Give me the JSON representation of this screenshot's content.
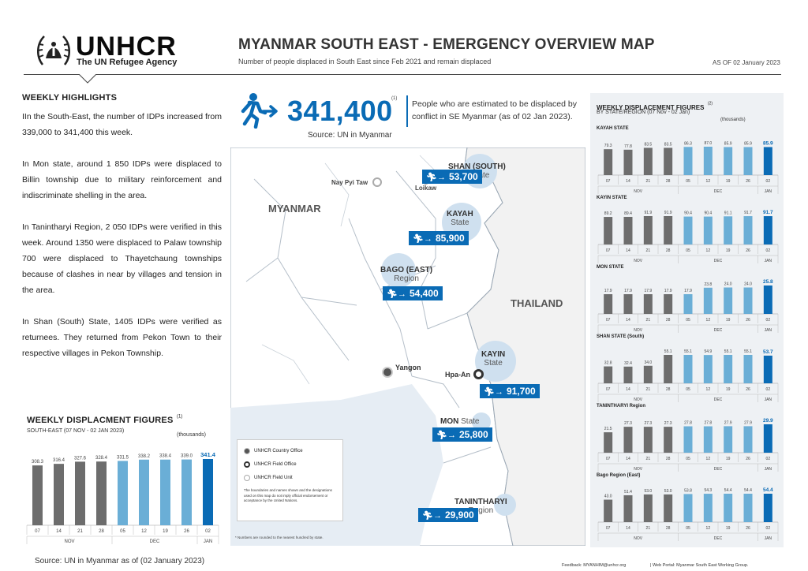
{
  "header": {
    "org_name": "UNHCR",
    "org_sub": "The UN Refugee Agency",
    "title": "MYANMAR SOUTH EAST - EMERGENCY OVERVIEW MAP",
    "subtitle": "Number of people displaced in South East since Feb 2021 and remain displaced",
    "as_of": "AS OF 02 January 2023"
  },
  "highlights": {
    "title": "WEEKLY HIGHLIGHTS",
    "paragraphs": [
      "IIn the South-East, the number of IDPs increased from 339,000 to 341,400 this week.",
      "In Mon state, around 1 850 IDPs were displaced to Billin township due to military reinforcement and indiscriminate shelling in the area.",
      "In Tanintharyi Region, 2 050 IDPs were verified in this week. Around 1350 were displaced to Palaw township 700 were displaced to Thayetchaung townships because of clashes in near by villages and tension in the area.",
      "In Shan (South) State, 1405 IDPs were verified as returnees. They returned from Pekon Town to their respective villages in Pekon Township."
    ]
  },
  "headline": {
    "total": "341,400",
    "footnote": "(1)",
    "source": "Source: UN in Myanmar",
    "description": "People who are estimated to be displaced by conflict in SE Myanmar (as of 02 Jan 2023)."
  },
  "map": {
    "country": "MYANMAR",
    "neighbor": "THAILAND",
    "cities": {
      "nay_pyi_taw": "Nay Pyi Taw",
      "loikaw": "Loikaw",
      "yangon": "Yangon",
      "hpa_an": "Hpa-An"
    },
    "regions": [
      {
        "key": "shan",
        "name": "SHAN (SOUTH)",
        "type": "State",
        "value": "53,700"
      },
      {
        "key": "kayah",
        "name": "KAYAH",
        "type": "State",
        "value": "85,900"
      },
      {
        "key": "bago",
        "name": "BAGO (EAST)",
        "type": "Region",
        "value": "54,400"
      },
      {
        "key": "kayin",
        "name": "KAYIN",
        "type": "State",
        "value": "91,700"
      },
      {
        "key": "mon",
        "name": "MON",
        "type": "State",
        "value": "25,800"
      },
      {
        "key": "tanintharyi",
        "name": "TANINTHARYI",
        "type": "Region",
        "value": "29,900"
      }
    ],
    "legend": {
      "country_office": "UNHCR Country Office",
      "field_office": "UNHCR Field Office",
      "field_unit": "UNHCR Field Unit",
      "disclaimer": "The boundaries and names shown and the designations used on this map do not imply official endorsement or acceptance by the United Nations.",
      "note": "* Numbers are rounded to the nearest hundred by state."
    }
  },
  "bottom_chart": {
    "title": "WEEKLY DISPLACMENT FIGURES",
    "footnote": "(1)",
    "subtitle": "SOUTH-EAST (07 NOV - 02 JAN 2023)",
    "unit": "(thousands)",
    "source": "Source: UN in Myanmar as of (02 January 2023)"
  },
  "right_panel": {
    "title": "WEEKLY DISPLACEMENT FIGURES",
    "footnote": "(2)",
    "subtitle": "BY STATE/REGION (07 Nov - 02 Jan)",
    "unit": "(thousands)"
  },
  "footer": {
    "feedback": "Feedback: MYANHIM@unhcr.org",
    "portal": "| Web Portal: Myanmar South East Working Group."
  },
  "colors": {
    "nov": "#6d6d6d",
    "dec": "#6aaed6",
    "jan": "#0a6bb5",
    "brand_blue": "#0a6bb5"
  },
  "chart_data": [
    {
      "type": "bar",
      "title": "WEEKLY DISPLACMENT FIGURES",
      "subtitle": "SOUTH-EAST (07 NOV - 02 JAN 2023)",
      "ylabel": "(thousands)",
      "categories": [
        "07",
        "14",
        "21",
        "28",
        "05",
        "12",
        "19",
        "26",
        "02"
      ],
      "months": [
        {
          "label": "NOV",
          "span": 4
        },
        {
          "label": "DEC",
          "span": 4
        },
        {
          "label": "JAN",
          "span": 1
        }
      ],
      "values": [
        308.3,
        316.4,
        327.6,
        328.4,
        331.5,
        338.2,
        338.4,
        339.0,
        341.4
      ],
      "ylim": [
        0,
        341.4
      ]
    },
    {
      "type": "bar",
      "title": "KAYAH STATE",
      "categories": [
        "07",
        "14",
        "21",
        "28",
        "05",
        "12",
        "19",
        "26",
        "02"
      ],
      "months": [
        {
          "label": "NOV",
          "span": 4
        },
        {
          "label": "DEC",
          "span": 4
        },
        {
          "label": "JAN",
          "span": 1
        }
      ],
      "values": [
        79.3,
        77.8,
        83.5,
        83.5,
        86.3,
        87.0,
        85.9,
        85.9,
        85.9
      ],
      "ylim": [
        0,
        87.0
      ]
    },
    {
      "type": "bar",
      "title": "KAYIN STATE",
      "categories": [
        "07",
        "14",
        "21",
        "28",
        "05",
        "12",
        "19",
        "26",
        "02"
      ],
      "months": [
        {
          "label": "NOV",
          "span": 4
        },
        {
          "label": "DEC",
          "span": 4
        },
        {
          "label": "JAN",
          "span": 1
        }
      ],
      "values": [
        89.2,
        89.4,
        91.9,
        91.9,
        90.4,
        90.4,
        91.1,
        91.7,
        91.7
      ],
      "ylim": [
        0,
        91.9
      ]
    },
    {
      "type": "bar",
      "title": "MON STATE",
      "categories": [
        "07",
        "14",
        "21",
        "28",
        "05",
        "12",
        "19",
        "26",
        "02"
      ],
      "months": [
        {
          "label": "NOV",
          "span": 4
        },
        {
          "label": "DEC",
          "span": 4
        },
        {
          "label": "JAN",
          "span": 1
        }
      ],
      "values": [
        17.9,
        17.9,
        17.9,
        17.9,
        17.9,
        23.8,
        24.0,
        24.0,
        25.8
      ],
      "ylim": [
        0,
        25.8
      ]
    },
    {
      "type": "bar",
      "title": "SHAN STATE (South)",
      "categories": [
        "07",
        "14",
        "21",
        "28",
        "05",
        "12",
        "19",
        "26",
        "02"
      ],
      "months": [
        {
          "label": "NOV",
          "span": 4
        },
        {
          "label": "DEC",
          "span": 4
        },
        {
          "label": "JAN",
          "span": 1
        }
      ],
      "values": [
        32.8,
        32.4,
        34.0,
        55.1,
        55.1,
        54.9,
        55.1,
        55.1,
        53.7
      ],
      "ylim": [
        0,
        55.1
      ]
    },
    {
      "type": "bar",
      "title": "TANINTHARYI Region",
      "categories": [
        "07",
        "14",
        "21",
        "28",
        "05",
        "12",
        "19",
        "26",
        "02"
      ],
      "months": [
        {
          "label": "NOV",
          "span": 4
        },
        {
          "label": "DEC",
          "span": 4
        },
        {
          "label": "JAN",
          "span": 1
        }
      ],
      "values": [
        21.5,
        27.3,
        27.3,
        27.3,
        27.8,
        27.8,
        27.9,
        27.9,
        29.9
      ],
      "ylim": [
        0,
        29.9
      ]
    },
    {
      "type": "bar",
      "title": "Bago Region (East)",
      "categories": [
        "07",
        "14",
        "21",
        "28",
        "05",
        "12",
        "19",
        "26",
        "02"
      ],
      "months": [
        {
          "label": "NOV",
          "span": 4
        },
        {
          "label": "DEC",
          "span": 4
        },
        {
          "label": "JAN",
          "span": 1
        }
      ],
      "values": [
        43.0,
        51.4,
        53.0,
        53.0,
        53.8,
        54.3,
        54.4,
        54.4,
        54.4
      ],
      "ylim": [
        0,
        54.4
      ]
    }
  ]
}
